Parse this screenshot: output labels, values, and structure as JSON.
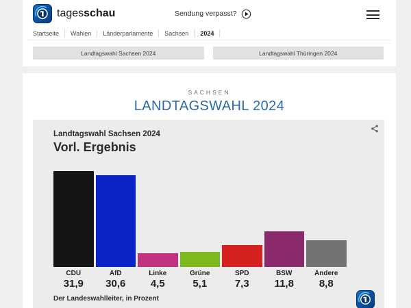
{
  "header": {
    "brand_normal": "tages",
    "brand_bold": "schau",
    "sendung_verpasst": "Sendung verpasst?"
  },
  "breadcrumb": {
    "items": [
      "Startseite",
      "Wahlen",
      "Länderparlamente",
      "Sachsen",
      "2024"
    ]
  },
  "tabs": [
    {
      "label": "Landtagswahl Sachsen 2024"
    },
    {
      "label": "Landtagswahl Thüringen 2024"
    }
  ],
  "main": {
    "kicker": "SACHSEN",
    "title": "LANDTAGSWAHL 2024"
  },
  "chart_data": {
    "type": "bar",
    "title": "Landtagswahl Sachsen 2024",
    "subtitle": "Vorl. Ergebnis",
    "categories": [
      "CDU",
      "AfD",
      "Linke",
      "Grüne",
      "SPD",
      "BSW",
      "Andere"
    ],
    "values": [
      31.9,
      30.6,
      4.5,
      5.1,
      7.3,
      11.8,
      8.8
    ],
    "value_labels": [
      "31,9",
      "30,6",
      "4,5",
      "5,1",
      "7,3",
      "11,8",
      "8,8"
    ],
    "colors": [
      "#141414",
      "#0b24c8",
      "#c1337e",
      "#7cb91e",
      "#d52220",
      "#8a2a6d",
      "#737373"
    ],
    "unit": "Prozent",
    "source": "Der Landeswahlleiter, in Prozent",
    "ylim": [
      0,
      35
    ],
    "grid": false,
    "legend": false
  },
  "icons": {
    "tagesschau-logo-icon": "blue-globe-app-tile",
    "play-icon": "circled-play-triangle",
    "menu-icon": "hamburger-lines",
    "share-icon": "share-nodes"
  },
  "theme": {
    "title_blue": "#2a69ae",
    "logo_blue": "#0d4d9a",
    "card_bg": "#ececec",
    "page_bg": "#efefef"
  }
}
